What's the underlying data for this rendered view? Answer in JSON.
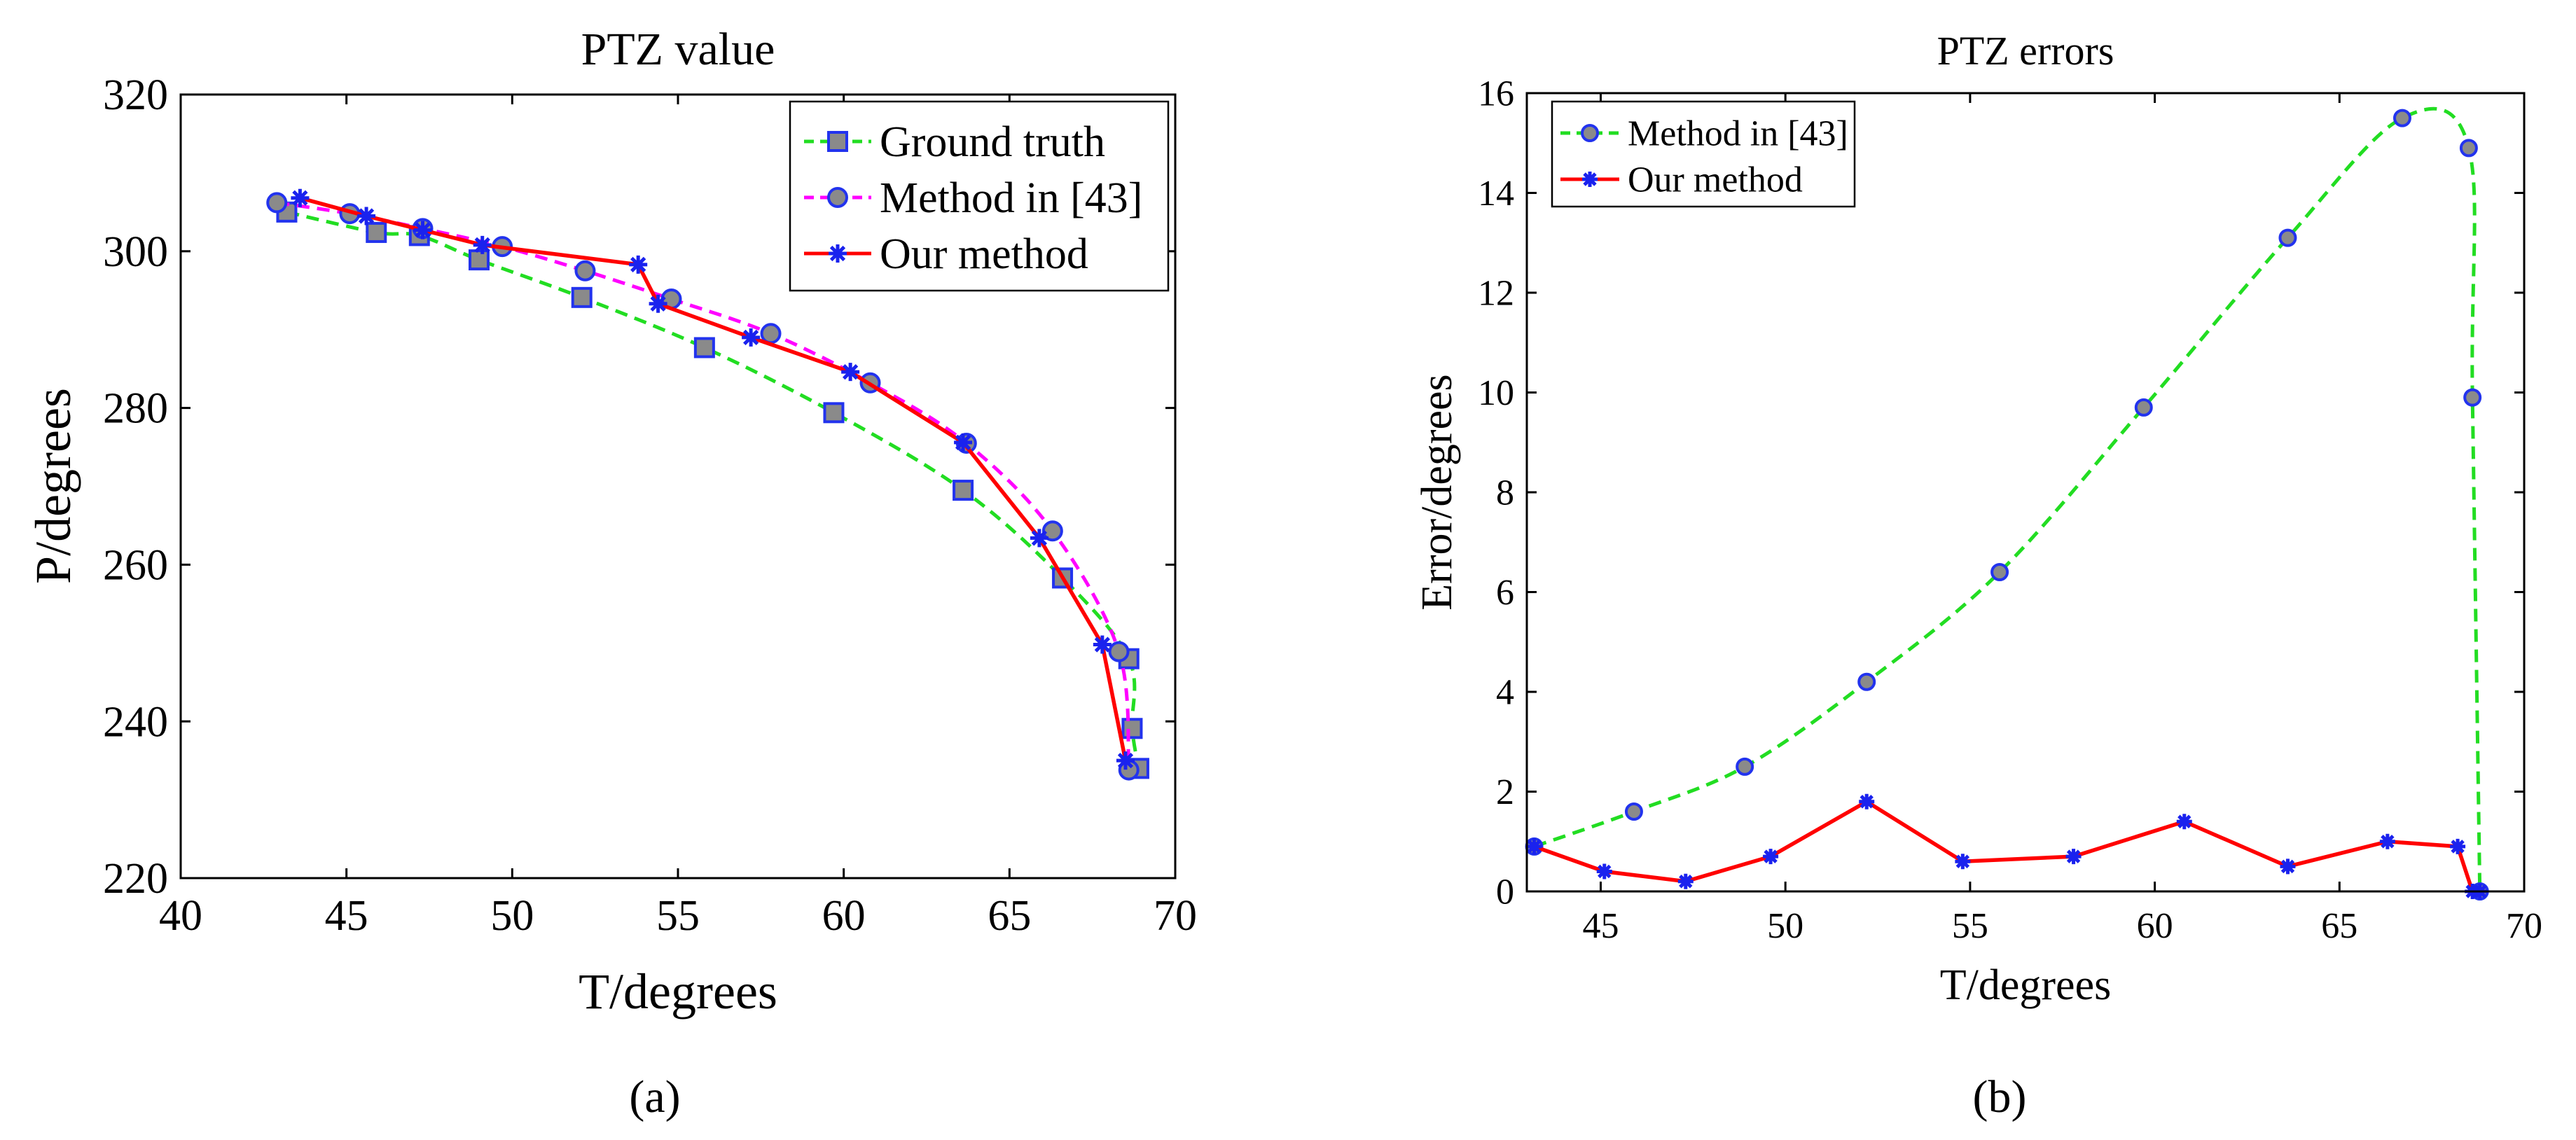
{
  "chart_data": [
    {
      "type": "line",
      "panel_label": "(a)",
      "title": "PTZ value",
      "xlabel": "T/degrees",
      "ylabel": "P/degrees",
      "xlim": [
        40,
        70
      ],
      "ylim": [
        220,
        320
      ],
      "xticks": [
        "40",
        "45",
        "50",
        "55",
        "60",
        "65",
        "70"
      ],
      "yticks": [
        "220",
        "240",
        "260",
        "280",
        "300",
        "320"
      ],
      "legend_position": "top-right",
      "series": [
        {
          "name": "Ground truth",
          "color": "#22dd22",
          "marker": "square",
          "style": "dashed",
          "x": [
            43.2,
            45.9,
            47.2,
            49.0,
            52.1,
            55.8,
            59.7,
            63.6,
            66.6,
            68.6,
            68.7,
            68.9
          ],
          "y": [
            305.0,
            302.4,
            302.0,
            298.9,
            294.1,
            287.7,
            279.4,
            269.5,
            258.3,
            248.0,
            239.1,
            234.0
          ]
        },
        {
          "name": "Method in [43]",
          "color": "#ff00ff",
          "marker": "circle",
          "style": "dashed",
          "x": [
            42.9,
            45.1,
            47.3,
            49.7,
            52.2,
            54.8,
            57.8,
            60.8,
            63.7,
            66.3,
            68.3,
            68.6
          ],
          "y": [
            306.2,
            304.8,
            302.9,
            300.6,
            297.5,
            293.9,
            289.5,
            283.2,
            275.5,
            264.3,
            248.9,
            233.8
          ]
        },
        {
          "name": "Our method",
          "color": "#ff0000",
          "marker": "star",
          "style": "solid",
          "x": [
            43.6,
            45.6,
            47.3,
            49.1,
            53.8,
            54.4,
            57.2,
            60.2,
            63.6,
            65.9,
            67.8,
            68.5
          ],
          "y": [
            306.8,
            304.5,
            302.7,
            300.8,
            298.3,
            293.3,
            289.0,
            284.6,
            275.6,
            263.4,
            249.8,
            235.0
          ]
        }
      ]
    },
    {
      "type": "line",
      "panel_label": "(b)",
      "title": "PTZ errors",
      "xlabel": "T/degrees",
      "ylabel": "Error/degrees",
      "xlim": [
        43,
        70
      ],
      "ylim": [
        0,
        16
      ],
      "xticks": [
        "45",
        "50",
        "55",
        "60",
        "65",
        "70"
      ],
      "yticks": [
        "0",
        "2",
        "4",
        "6",
        "8",
        "10",
        "12",
        "14",
        "16"
      ],
      "legend_position": "top-left",
      "series": [
        {
          "name": "Method in [43]",
          "color": "#22dd22",
          "marker": "circle",
          "style": "dashed",
          "x": [
            43.2,
            45.9,
            48.9,
            52.2,
            55.8,
            59.7,
            63.6,
            66.7,
            68.5,
            68.6,
            68.8
          ],
          "y": [
            0.9,
            1.6,
            2.5,
            4.2,
            6.4,
            9.7,
            13.1,
            15.5,
            14.9,
            9.9,
            0.0
          ]
        },
        {
          "name": "Our method",
          "color": "#ff0000",
          "marker": "star",
          "style": "solid",
          "x": [
            43.2,
            45.1,
            47.3,
            49.6,
            52.2,
            54.8,
            57.8,
            60.8,
            63.6,
            66.3,
            68.2,
            68.6,
            68.8
          ],
          "y": [
            0.9,
            0.4,
            0.2,
            0.7,
            1.8,
            0.6,
            0.7,
            1.4,
            0.5,
            1.0,
            0.9,
            0.0,
            0.0
          ]
        }
      ]
    }
  ]
}
